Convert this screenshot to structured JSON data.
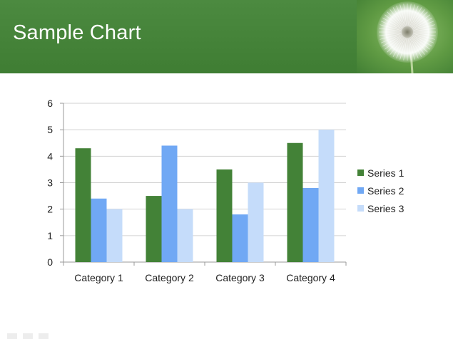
{
  "slide": {
    "title": "Sample Chart"
  },
  "colors": {
    "header": "#4a8a3f",
    "series_1": "#438237",
    "series_2": "#70a8f4",
    "series_3": "#c5dcfa",
    "gridline": "#d2d2d2",
    "axis": "#9a9a9a"
  },
  "icons": {
    "header_photo": "dandelion-image"
  },
  "chart_data": {
    "type": "bar",
    "title": "",
    "xlabel": "",
    "ylabel": "",
    "categories": [
      "Category 1",
      "Category 2",
      "Category 3",
      "Category 4"
    ],
    "series": [
      {
        "name": "Series 1",
        "values": [
          4.3,
          2.5,
          3.5,
          4.5
        ]
      },
      {
        "name": "Series 2",
        "values": [
          2.4,
          4.4,
          1.8,
          2.8
        ]
      },
      {
        "name": "Series 3",
        "values": [
          2.0,
          2.0,
          3.0,
          5.0
        ]
      }
    ],
    "ylim": [
      0,
      6
    ],
    "yticks": [
      "0",
      "1",
      "2",
      "3",
      "4",
      "5",
      "6"
    ],
    "grid": true,
    "legend_position": "right"
  }
}
